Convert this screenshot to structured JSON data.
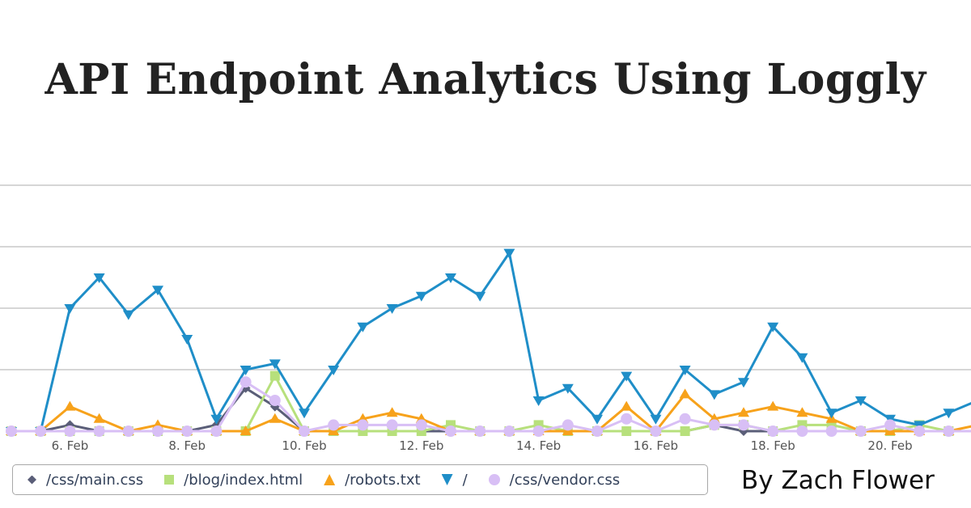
{
  "header": {
    "title": "API Endpoint Analytics Using Loggly",
    "byline": "By Zach Flower"
  },
  "chart_data": {
    "type": "line",
    "title": "API Endpoint Analytics Using Loggly",
    "xlabel": "",
    "ylabel": "",
    "x_start": "5 Feb 00:00",
    "x_interval_hours": 12,
    "x_ticks": [
      {
        "label": "6. Feb",
        "index": 2
      },
      {
        "label": "8. Feb",
        "index": 6
      },
      {
        "label": "10. Feb",
        "index": 10
      },
      {
        "label": "12. Feb",
        "index": 14
      },
      {
        "label": "14. Feb",
        "index": 18
      },
      {
        "label": "16. Feb",
        "index": 22
      },
      {
        "label": "18. Feb",
        "index": 26
      },
      {
        "label": "20. Feb",
        "index": 30
      }
    ],
    "ylim": [
      0,
      40
    ],
    "y_gridlines": [
      10,
      20,
      30,
      40
    ],
    "grid": true,
    "legend_position": "bottom-left",
    "series": [
      {
        "name": "/css/main.css",
        "color": "#5a5e78",
        "marker": "diamond",
        "values": [
          0,
          0,
          1,
          0,
          0,
          0,
          0,
          1,
          7,
          4,
          0,
          0,
          0,
          0,
          0,
          0,
          0,
          0,
          0,
          0,
          0,
          0,
          0,
          0,
          1,
          0,
          0,
          0,
          0,
          0,
          0,
          0,
          0,
          0
        ]
      },
      {
        "name": "/blog/index.html",
        "color": "#b7e07c",
        "marker": "square",
        "values": [
          0,
          0,
          0,
          0,
          0,
          0,
          0,
          0,
          0,
          9,
          0,
          0,
          0,
          0,
          0,
          1,
          0,
          0,
          1,
          0,
          0,
          0,
          0,
          0,
          1,
          1,
          0,
          1,
          1,
          0,
          0,
          1,
          0,
          0
        ]
      },
      {
        "name": "/robots.txt",
        "color": "#f7a21b",
        "marker": "triangle",
        "values": [
          0,
          0,
          4,
          2,
          0,
          1,
          0,
          0,
          0,
          2,
          0,
          0,
          2,
          3,
          2,
          0,
          0,
          0,
          0,
          0,
          0,
          4,
          0,
          6,
          2,
          3,
          4,
          3,
          2,
          0,
          0,
          0,
          0,
          1
        ]
      },
      {
        "name": "/",
        "color": "#1f8ec8",
        "marker": "triangle-down",
        "values": [
          0,
          0,
          20,
          25,
          19,
          23,
          15,
          2,
          10,
          11,
          3,
          10,
          17,
          20,
          22,
          25,
          22,
          29,
          5,
          7,
          2,
          9,
          2,
          10,
          6,
          8,
          17,
          12,
          3,
          5,
          2,
          1,
          3,
          5
        ]
      },
      {
        "name": "/css/vendor.css",
        "color": "#d8bff5",
        "marker": "circle",
        "values": [
          0,
          0,
          0,
          0,
          0,
          0,
          0,
          0,
          8,
          5,
          0,
          1,
          1,
          1,
          1,
          0,
          0,
          0,
          0,
          1,
          0,
          2,
          0,
          2,
          1,
          1,
          0,
          0,
          0,
          0,
          1,
          0,
          0,
          0
        ]
      }
    ]
  }
}
